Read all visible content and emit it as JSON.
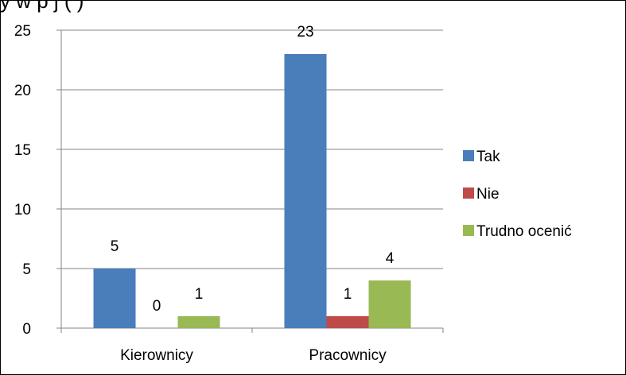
{
  "title": "y w               p                         j (          )",
  "chart_data": {
    "type": "bar",
    "categories": [
      "Kierownicy",
      "Pracownicy"
    ],
    "series": [
      {
        "name": "Tak",
        "values": [
          5,
          23
        ],
        "color": "#4a7ebb"
      },
      {
        "name": "Nie",
        "values": [
          0,
          1
        ],
        "color": "#be4b48"
      },
      {
        "name": "Trudno ocenić",
        "values": [
          1,
          4
        ],
        "color": "#98b954"
      }
    ],
    "ylim": [
      0,
      25
    ],
    "yticks": [
      "0",
      "5",
      "10",
      "15",
      "20",
      "25"
    ],
    "grid": true,
    "legend_position": "right"
  }
}
